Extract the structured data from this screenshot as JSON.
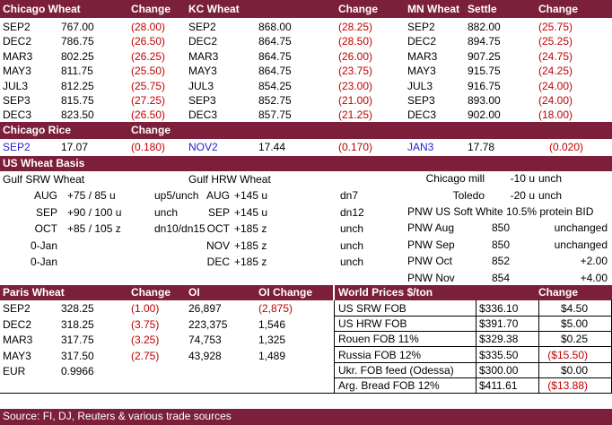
{
  "wheat_futures": {
    "headers": [
      "Chicago Wheat",
      "Change",
      "KC Wheat",
      "Change",
      "MN Wheat",
      "Settle",
      "Change"
    ],
    "chicago": [
      [
        "SEP2",
        "767.00",
        "(28.00)"
      ],
      [
        "DEC2",
        "786.75",
        "(26.50)"
      ],
      [
        "MAR3",
        "802.25",
        "(26.25)"
      ],
      [
        "MAY3",
        "811.75",
        "(25.50)"
      ],
      [
        "JUL3",
        "812.25",
        "(25.75)"
      ],
      [
        "SEP3",
        "815.75",
        "(27.25)"
      ],
      [
        "DEC3",
        "823.50",
        "(26.50)"
      ]
    ],
    "kc": [
      [
        "SEP2",
        "868.00",
        "(28.25)"
      ],
      [
        "DEC2",
        "864.75",
        "(28.50)"
      ],
      [
        "MAR3",
        "864.75",
        "(26.00)"
      ],
      [
        "MAY3",
        "864.75",
        "(23.75)"
      ],
      [
        "JUL3",
        "854.25",
        "(23.00)"
      ],
      [
        "SEP3",
        "852.75",
        "(21.00)"
      ],
      [
        "DEC3",
        "857.75",
        "(21.25)"
      ]
    ],
    "mn": [
      [
        "SEP2",
        "882.00",
        "(25.75)"
      ],
      [
        "DEC2",
        "894.75",
        "(25.25)"
      ],
      [
        "MAR3",
        "907.25",
        "(24.75)"
      ],
      [
        "MAY3",
        "915.75",
        "(24.25)"
      ],
      [
        "JUL3",
        "916.75",
        "(24.00)"
      ],
      [
        "SEP3",
        "893.00",
        "(24.00)"
      ],
      [
        "DEC3",
        "902.00",
        "(18.00)"
      ]
    ]
  },
  "rice": {
    "headers": [
      "Chicago Rice",
      "Change"
    ],
    "row": [
      "SEP2",
      "17.07",
      "(0.180)",
      "NOV2",
      "17.44",
      "(0.170)",
      "JAN3",
      "17.78",
      "(0.020)"
    ]
  },
  "basis": {
    "title": "US Wheat Basis",
    "srw_title": "Gulf SRW Wheat",
    "hrw_title": "Gulf HRW Wheat",
    "srw": [
      [
        "AUG",
        "+75 / 85  u",
        "up5/unch"
      ],
      [
        "SEP",
        "+90 / 100  u",
        "unch"
      ],
      [
        "OCT",
        "+85 / 105  z",
        "dn10/dn15"
      ],
      [
        "0-Jan",
        "",
        ""
      ],
      [
        "0-Jan",
        "",
        ""
      ]
    ],
    "hrw": [
      [
        "AUG",
        "+145 u",
        "dn7"
      ],
      [
        "SEP",
        "+145 u",
        "dn12"
      ],
      [
        "OCT",
        "+185 z",
        "unch"
      ],
      [
        "NOV",
        "+185 z",
        "unch"
      ],
      [
        "DEC",
        "+185 z",
        "unch"
      ]
    ],
    "mill": [
      [
        "Chicago mill",
        "-10 u",
        "unch"
      ],
      [
        "Toledo",
        "-20 u",
        "unch"
      ]
    ],
    "pnw_title": "PNW US Soft White 10.5% protein BID",
    "pnw": [
      [
        "PNW Aug",
        "850",
        "unchanged"
      ],
      [
        "PNW Sep",
        "850",
        "unchanged"
      ],
      [
        "PNW Oct",
        "852",
        "+2.00"
      ],
      [
        "PNW Nov",
        "854",
        "+4.00"
      ]
    ]
  },
  "paris": {
    "headers": [
      "Paris Wheat",
      "Change",
      "OI",
      "OI Change"
    ],
    "rows": [
      [
        "SEP2",
        "328.25",
        "(1.00)",
        "26,897",
        "(2,875)"
      ],
      [
        "DEC2",
        "318.25",
        "(3.75)",
        "223,375",
        "1,546"
      ],
      [
        "MAR3",
        "317.75",
        "(3.25)",
        "74,753",
        "1,325"
      ],
      [
        "MAY3",
        "317.50",
        "(2.75)",
        "43,928",
        "1,489"
      ]
    ],
    "eur_label": "EUR",
    "eur_value": "0.9966"
  },
  "world": {
    "headers": [
      "World Prices $/ton",
      "Change"
    ],
    "rows": [
      [
        "US SRW FOB",
        "$336.10",
        "$4.50"
      ],
      [
        "US HRW FOB",
        "$391.70",
        "$5.00"
      ],
      [
        "Rouen FOB 11%",
        "$329.38",
        "$0.25"
      ],
      [
        "Russia FOB 12%",
        "$335.50",
        "($15.50)"
      ],
      [
        "Ukr. FOB feed (Odessa)",
        "$300.00",
        "$0.00"
      ],
      [
        "Arg. Bread FOB 12%",
        "$411.61",
        "($13.88)"
      ]
    ]
  },
  "footer": "Source: FI, DJ, Reuters & various trade sources",
  "colors": {
    "header_bg": "#7b1f3a",
    "negative": "#c00000",
    "blue_label": "#1f1fd0"
  }
}
